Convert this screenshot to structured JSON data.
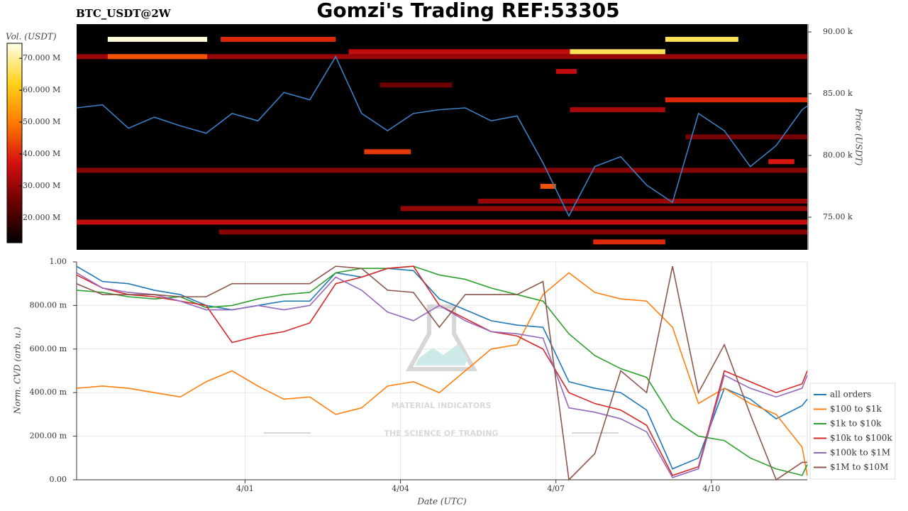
{
  "chart_data": [
    {
      "type": "heatmap",
      "title": "Gomzi's Trading REF:53305",
      "subtitle": "BTC_USDT@2W",
      "y2label": "Price (USDT)",
      "colorbar_label": "Vol. (USDT)",
      "xlim": [
        -2.25,
        11.85
      ],
      "ylim": [
        72360,
        90630
      ],
      "yticks": [
        {
          "value": 75000,
          "label": "75.00 k"
        },
        {
          "value": 80000,
          "label": "80.00 k"
        },
        {
          "value": 85000,
          "label": "85.00 k"
        },
        {
          "value": 90000,
          "label": "90.00 k"
        }
      ],
      "clim": [
        12200000,
        74700000
      ],
      "cticks": [
        {
          "value": 20000000,
          "label": "20.000 M"
        },
        {
          "value": 30000000,
          "label": "30.000 M"
        },
        {
          "value": 40000000,
          "label": "40.000 M"
        },
        {
          "value": 50000000,
          "label": "50.000 M"
        },
        {
          "value": 60000000,
          "label": "60.000 M"
        },
        {
          "value": 70000000,
          "label": "70.000 M"
        }
      ],
      "colormap": [
        "#000000",
        "#6a0000",
        "#d41010",
        "#ff7a00",
        "#ffd21a",
        "#ffffe8"
      ],
      "levels": [
        {
          "price": 88000,
          "start": -2.25,
          "end": 11.85,
          "volume": 30000000
        },
        {
          "price": 78800,
          "start": -2.25,
          "end": 11.85,
          "volume": 28000000
        },
        {
          "price": 74600,
          "start": -2.25,
          "end": 11.85,
          "volume": 35000000
        },
        {
          "price": 73800,
          "start": 0.5,
          "end": 11.85,
          "volume": 28000000
        },
        {
          "price": 76300,
          "start": 5.5,
          "end": 11.85,
          "volume": 30000000
        },
        {
          "price": 75700,
          "start": 4.0,
          "end": 11.85,
          "volume": 30000000
        },
        {
          "price": 85700,
          "start": 3.6,
          "end": 5.0,
          "volume": 25000000
        },
        {
          "price": 81500,
          "start": 9.5,
          "end": 11.85,
          "volume": 26000000
        },
        {
          "price": 88000,
          "start": -1.65,
          "end": 0.27,
          "volume": 45000000
        },
        {
          "price": 88400,
          "start": 3.0,
          "end": 7.27,
          "volume": 35000000
        },
        {
          "price": 86800,
          "start": 7.0,
          "end": 7.4,
          "volume": 35000000
        },
        {
          "price": 84500,
          "start": 9.11,
          "end": 11.85,
          "volume": 40000000
        },
        {
          "price": 83700,
          "start": 7.27,
          "end": 9.11,
          "volume": 32000000
        },
        {
          "price": 80300,
          "start": 3.3,
          "end": 4.2,
          "volume": 42000000
        },
        {
          "price": 79500,
          "start": 11.1,
          "end": 11.6,
          "volume": 38000000
        },
        {
          "price": 77500,
          "start": 6.7,
          "end": 7.0,
          "volume": 45000000
        },
        {
          "price": 73000,
          "start": 7.72,
          "end": 9.11,
          "volume": 40000000
        },
        {
          "price": 89400,
          "start": 0.53,
          "end": 2.75,
          "volume": 40000000
        },
        {
          "price": 89400,
          "start": -1.65,
          "end": 0.27,
          "volume": 74000000
        },
        {
          "price": 88400,
          "start": 7.27,
          "end": 9.11,
          "volume": 66000000
        },
        {
          "price": 89400,
          "start": 9.11,
          "end": 10.52,
          "volume": 66000000
        }
      ],
      "price": {
        "color": "#3b7fc4",
        "x": [
          -2.25,
          -1.75,
          -1.25,
          -0.75,
          -0.25,
          0.25,
          0.75,
          1.25,
          1.75,
          2.25,
          2.75,
          3.25,
          3.75,
          4.25,
          4.75,
          5.25,
          5.75,
          6.25,
          6.75,
          7.25,
          7.75,
          8.25,
          8.75,
          9.25,
          9.75,
          10.25,
          10.75,
          11.25,
          11.75,
          11.85
        ],
        "values": [
          83850,
          84100,
          82200,
          83100,
          82400,
          81800,
          83400,
          82800,
          85100,
          84500,
          88000,
          83400,
          82000,
          83400,
          83700,
          83850,
          82800,
          83200,
          79400,
          75100,
          79100,
          79900,
          77600,
          76200,
          83400,
          82000,
          79100,
          80800,
          83700,
          84000
        ]
      }
    },
    {
      "type": "line",
      "xlabel": "Date (UTC)",
      "ylabel": "Norm. CVD (arb. u.)",
      "xlim": [
        -2.25,
        11.85
      ],
      "ylim": [
        0,
        1
      ],
      "grid": true,
      "xticks": [
        {
          "value": 1,
          "label": "4/01"
        },
        {
          "value": 4,
          "label": "4/04"
        },
        {
          "value": 7,
          "label": "4/07"
        },
        {
          "value": 10,
          "label": "4/10"
        }
      ],
      "yticks": [
        {
          "value": 0,
          "label": "0.00"
        },
        {
          "value": 0.2,
          "label": "200.00 m"
        },
        {
          "value": 0.4,
          "label": "400.00 m"
        },
        {
          "value": 0.6,
          "label": "600.00 m"
        },
        {
          "value": 0.8,
          "label": "800.00 m"
        },
        {
          "value": 1,
          "label": "1.00"
        }
      ],
      "watermark": {
        "title": "MATERIAL INDICATORS",
        "subtitle": "THE SCIENCE OF TRADING"
      },
      "x": [
        -2.25,
        -1.75,
        -1.25,
        -0.75,
        -0.25,
        0.25,
        0.75,
        1.25,
        1.75,
        2.25,
        2.75,
        3.25,
        3.75,
        4.25,
        4.75,
        5.25,
        5.75,
        6.25,
        6.75,
        7.25,
        7.75,
        8.25,
        8.75,
        9.25,
        9.75,
        10.25,
        10.75,
        11.25,
        11.75,
        11.85
      ],
      "series": [
        {
          "name": "all orders",
          "color": "#1f77b4",
          "values": [
            0.98,
            0.91,
            0.9,
            0.87,
            0.85,
            0.8,
            0.78,
            0.8,
            0.82,
            0.82,
            0.95,
            0.93,
            0.97,
            0.96,
            0.83,
            0.78,
            0.73,
            0.71,
            0.7,
            0.45,
            0.42,
            0.4,
            0.32,
            0.05,
            0.1,
            0.42,
            0.37,
            0.28,
            0.34,
            0.37
          ]
        },
        {
          "name": "$100 to $1k",
          "color": "#ff7f0e",
          "values": [
            0.42,
            0.43,
            0.42,
            0.4,
            0.38,
            0.45,
            0.5,
            0.43,
            0.37,
            0.38,
            0.3,
            0.33,
            0.43,
            0.45,
            0.4,
            0.5,
            0.6,
            0.62,
            0.85,
            0.95,
            0.86,
            0.83,
            0.82,
            0.7,
            0.35,
            0.42,
            0.35,
            0.3,
            0.15,
            0.02
          ]
        },
        {
          "name": "$1k to $10k",
          "color": "#2ca02c",
          "values": [
            0.87,
            0.86,
            0.84,
            0.83,
            0.84,
            0.79,
            0.8,
            0.83,
            0.85,
            0.86,
            0.95,
            0.97,
            0.97,
            0.98,
            0.94,
            0.92,
            0.88,
            0.85,
            0.82,
            0.67,
            0.57,
            0.51,
            0.47,
            0.28,
            0.2,
            0.18,
            0.1,
            0.05,
            0.02,
            0.07
          ]
        },
        {
          "name": "$10k to $100k",
          "color": "#d62728",
          "values": [
            0.94,
            0.88,
            0.85,
            0.84,
            0.82,
            0.8,
            0.63,
            0.66,
            0.68,
            0.72,
            0.9,
            0.93,
            0.97,
            0.98,
            0.8,
            0.74,
            0.68,
            0.66,
            0.6,
            0.4,
            0.35,
            0.32,
            0.25,
            0.02,
            0.06,
            0.5,
            0.45,
            0.4,
            0.44,
            0.5
          ]
        },
        {
          "name": "$100k to $1M",
          "color": "#9467bd",
          "values": [
            0.95,
            0.88,
            0.86,
            0.85,
            0.82,
            0.78,
            0.78,
            0.8,
            0.78,
            0.8,
            0.93,
            0.87,
            0.77,
            0.73,
            0.8,
            0.73,
            0.68,
            0.67,
            0.65,
            0.33,
            0.31,
            0.28,
            0.22,
            0.01,
            0.05,
            0.48,
            0.42,
            0.38,
            0.42,
            0.48
          ]
        },
        {
          "name": "$1M to $10M",
          "color": "#8c564b",
          "values": [
            0.9,
            0.85,
            0.85,
            0.85,
            0.84,
            0.84,
            0.9,
            0.9,
            0.9,
            0.9,
            0.98,
            0.97,
            0.87,
            0.86,
            0.7,
            0.85,
            0.85,
            0.85,
            0.91,
            0.0,
            0.12,
            0.5,
            0.4,
            0.98,
            0.4,
            0.62,
            0.3,
            0.0,
            0.08,
            0.08
          ]
        }
      ]
    }
  ]
}
